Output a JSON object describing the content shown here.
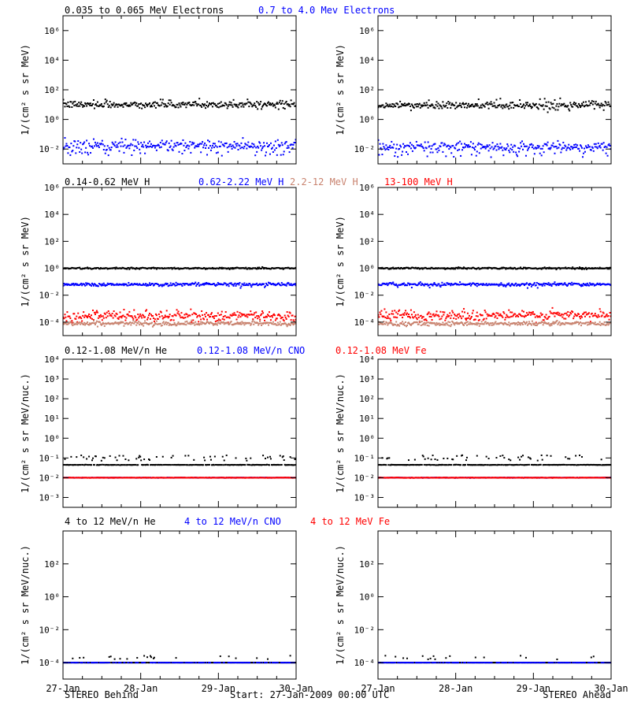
{
  "colors": {
    "black": "#000000",
    "blue": "#0000ff",
    "tan": "#c8826e",
    "red": "#ff0000",
    "purple": "#8000ff"
  },
  "footer": {
    "left": "STEREO Behind",
    "center": "Start: 27-Jan-2009 00:00 UTC",
    "right": "STEREO Ahead"
  },
  "x_ticks": [
    "27-Jan",
    "28-Jan",
    "29-Jan",
    "30-Jan"
  ],
  "rows": [
    {
      "ylabel": "1/(cm² s sr MeV)",
      "labels": [
        {
          "text": "0.035 to 0.065 MeV Electrons",
          "color": "black"
        },
        {
          "text": "0.7 to 4.0 Mev Electrons",
          "color": "blue"
        }
      ]
    },
    {
      "ylabel": "1/(cm² s sr MeV)",
      "labels": [
        {
          "text": "0.14-0.62 MeV H",
          "color": "black"
        },
        {
          "text": "0.62-2.22 MeV H",
          "color": "blue"
        },
        {
          "text": "2.2-12 MeV H",
          "color": "tan"
        },
        {
          "text": "13-100 MeV H",
          "color": "red"
        }
      ]
    },
    {
      "ylabel": "1/(cm² s sr MeV/nuc.)",
      "labels": [
        {
          "text": "0.12-1.08 MeV/n He",
          "color": "black"
        },
        {
          "text": "0.12-1.08 MeV/n CNO",
          "color": "blue"
        },
        {
          "text": "0.12-1.08 MeV Fe",
          "color": "red"
        }
      ]
    },
    {
      "ylabel": "1/(cm² s sr MeV/nuc.)",
      "labels": [
        {
          "text": "4 to 12 MeV/n He",
          "color": "black"
        },
        {
          "text": "4 to 12 MeV/n CNO",
          "color": "blue"
        },
        {
          "text": "4 to 12 MeV Fe",
          "color": "red"
        }
      ]
    }
  ],
  "chart_data": [
    {
      "type": "scatter",
      "panel": "electrons-behind",
      "yscale": "log",
      "ylim_exp": [
        -3,
        7
      ],
      "tick_exps": [
        -2,
        0,
        2,
        4,
        6
      ],
      "xlim_days": [
        0,
        3
      ],
      "series": [
        {
          "name": "0.035 to 0.065 MeV Electrons",
          "color": "black",
          "level_exp": 1.0,
          "spread": 0.12,
          "outliers": 0.03,
          "outlier_dev": 0.35
        },
        {
          "name": "0.7 to 4.0 Mev Electrons",
          "color": "blue",
          "level_exp": -1.75,
          "spread": 0.18,
          "outliers": 0.1,
          "outlier_dev": -0.5
        }
      ]
    },
    {
      "type": "scatter",
      "panel": "electrons-ahead",
      "yscale": "log",
      "ylim_exp": [
        -3,
        7
      ],
      "tick_exps": [
        -2,
        0,
        2,
        4,
        6
      ],
      "xlim_days": [
        0,
        3
      ],
      "series": [
        {
          "name": "0.035 to 0.065 MeV Electrons",
          "color": "black",
          "level_exp": 0.95,
          "spread": 0.12,
          "outliers": 0.03,
          "outlier_dev": 0.35
        },
        {
          "name": "0.7 to 4.0 Mev Electrons",
          "color": "blue",
          "level_exp": -1.85,
          "spread": 0.18,
          "outliers": 0.1,
          "outlier_dev": -0.5
        }
      ]
    },
    {
      "type": "scatter",
      "panel": "protons-behind",
      "yscale": "log",
      "ylim_exp": [
        -5,
        6
      ],
      "tick_exps": [
        -4,
        -2,
        0,
        2,
        4,
        6
      ],
      "xlim_days": [
        0,
        3
      ],
      "series": [
        {
          "name": "0.14-0.62 MeV H",
          "color": "black",
          "level_exp": 0.0,
          "spread": 0.03,
          "outliers": 0.0,
          "outlier_dev": 0
        },
        {
          "name": "0.62-2.22 MeV H",
          "color": "blue",
          "level_exp": -1.2,
          "spread": 0.06,
          "outliers": 0.02,
          "outlier_dev": -0.2
        },
        {
          "name": "13-100 MeV H",
          "color": "red",
          "level_exp": -3.55,
          "spread": 0.2,
          "outliers": 0.0,
          "outlier_dev": 0
        },
        {
          "name": "2.2-12 MeV H",
          "color": "tan",
          "level_exp": -4.1,
          "spread": 0.08,
          "outliers": 0.0,
          "outlier_dev": 0
        }
      ]
    },
    {
      "type": "scatter",
      "panel": "protons-ahead",
      "yscale": "log",
      "ylim_exp": [
        -5,
        6
      ],
      "tick_exps": [
        -4,
        -2,
        0,
        2,
        4,
        6
      ],
      "xlim_days": [
        0,
        3
      ],
      "series": [
        {
          "name": "0.14-0.62 MeV H",
          "color": "black",
          "level_exp": 0.0,
          "spread": 0.03,
          "outliers": 0.0,
          "outlier_dev": 0
        },
        {
          "name": "0.62-2.22 MeV H",
          "color": "blue",
          "level_exp": -1.2,
          "spread": 0.06,
          "outliers": 0.02,
          "outlier_dev": -0.2
        },
        {
          "name": "13-100 MeV H",
          "color": "red",
          "level_exp": -3.5,
          "spread": 0.2,
          "outliers": 0.0,
          "outlier_dev": 0
        },
        {
          "name": "2.2-12 MeV H",
          "color": "tan",
          "level_exp": -4.1,
          "spread": 0.08,
          "outliers": 0.0,
          "outlier_dev": 0
        }
      ]
    },
    {
      "type": "scatter",
      "panel": "heavy-low-behind",
      "yscale": "log",
      "ylim_exp": [
        -3.5,
        4
      ],
      "tick_exps": [
        -3,
        -2,
        -1,
        0,
        1,
        2,
        3,
        4
      ],
      "xlim_days": [
        0,
        3
      ],
      "series": [
        {
          "name": "0.12-1.08 MeV/n He",
          "color": "black",
          "level_exp": -1.35,
          "spread": 0.005,
          "outliers": 0.15,
          "outlier_dev": 0.35
        },
        {
          "name": "0.12-1.08 MeV/n CNO",
          "color": "blue",
          "level_exp": -2.0,
          "spread": 0.005,
          "outliers": 0.0,
          "outlier_dev": 0
        },
        {
          "name": "0.12-1.08 MeV Fe",
          "color": "red",
          "level_exp": -2.0,
          "spread": 0.005,
          "outliers": 0.0,
          "outlier_dev": 0
        }
      ]
    },
    {
      "type": "scatter",
      "panel": "heavy-low-ahead",
      "yscale": "log",
      "ylim_exp": [
        -3.5,
        4
      ],
      "tick_exps": [
        -3,
        -2,
        -1,
        0,
        1,
        2,
        3,
        4
      ],
      "xlim_days": [
        0,
        3
      ],
      "series": [
        {
          "name": "0.12-1.08 MeV/n He",
          "color": "black",
          "level_exp": -1.35,
          "spread": 0.005,
          "outliers": 0.15,
          "outlier_dev": 0.35
        },
        {
          "name": "0.12-1.08 MeV/n CNO",
          "color": "blue",
          "level_exp": -2.0,
          "spread": 0.005,
          "outliers": 0.0,
          "outlier_dev": 0
        },
        {
          "name": "0.12-1.08 MeV Fe",
          "color": "red",
          "level_exp": -2.0,
          "spread": 0.005,
          "outliers": 0.0,
          "outlier_dev": 0
        }
      ]
    },
    {
      "type": "scatter",
      "panel": "heavy-high-behind",
      "yscale": "log",
      "ylim_exp": [
        -5,
        4
      ],
      "tick_exps": [
        -4,
        -2,
        0,
        2
      ],
      "xlim_days": [
        0,
        3
      ],
      "series": [
        {
          "name": "4 to 12 MeV/n He",
          "color": "black",
          "level_exp": -4.0,
          "spread": 0.0,
          "outliers": 0.08,
          "outlier_dev": 0.3
        },
        {
          "name": "4 to 12 MeV/n CNO",
          "color": "blue",
          "level_exp": -4.0,
          "spread": 0.0,
          "outliers": 0.0,
          "outlier_dev": 0
        }
      ]
    },
    {
      "type": "scatter",
      "panel": "heavy-high-ahead",
      "yscale": "log",
      "ylim_exp": [
        -5,
        4
      ],
      "tick_exps": [
        -4,
        -2,
        0,
        2
      ],
      "xlim_days": [
        0,
        3
      ],
      "series": [
        {
          "name": "4 to 12 MeV/n He",
          "color": "black",
          "level_exp": -4.0,
          "spread": 0.0,
          "outliers": 0.05,
          "outlier_dev": 0.3
        },
        {
          "name": "4 to 12 MeV/n CNO",
          "color": "blue",
          "level_exp": -4.0,
          "spread": 0.0,
          "outliers": 0.0,
          "outlier_dev": 0
        }
      ]
    }
  ]
}
